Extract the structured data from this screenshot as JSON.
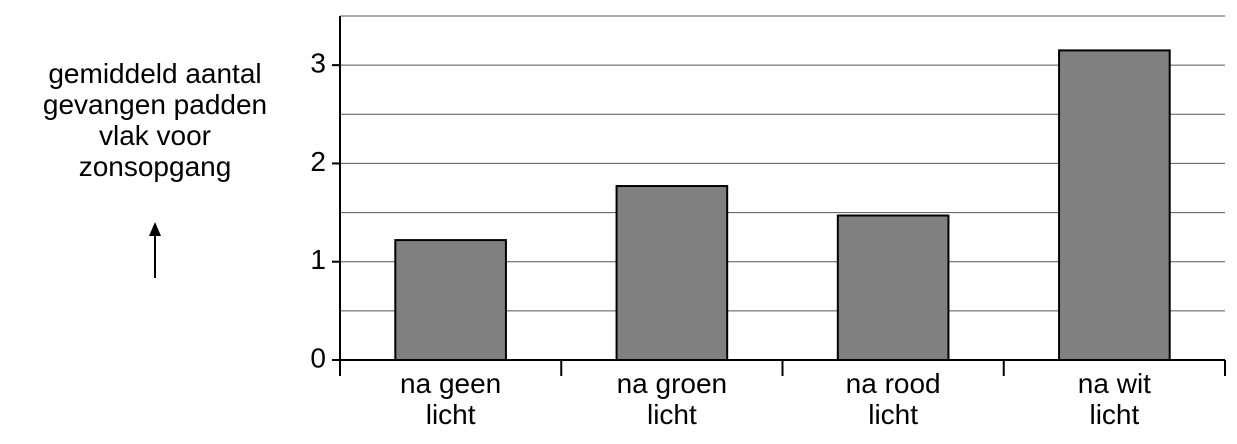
{
  "chart_data": {
    "type": "bar",
    "y_label": "gemiddeld aantal\ngevangen padden\nvlak voor\nzonsopgang",
    "categories": [
      "na geen\nlicht",
      "na groen\nlicht",
      "na rood\nlicht",
      "na wit\nlicht"
    ],
    "values": [
      1.22,
      1.77,
      1.47,
      3.15
    ],
    "color": "#808080",
    "ylim": [
      0,
      3.5
    ],
    "yticks": [
      0,
      1,
      2,
      3
    ],
    "grid": true,
    "grid_step": 0.5
  }
}
